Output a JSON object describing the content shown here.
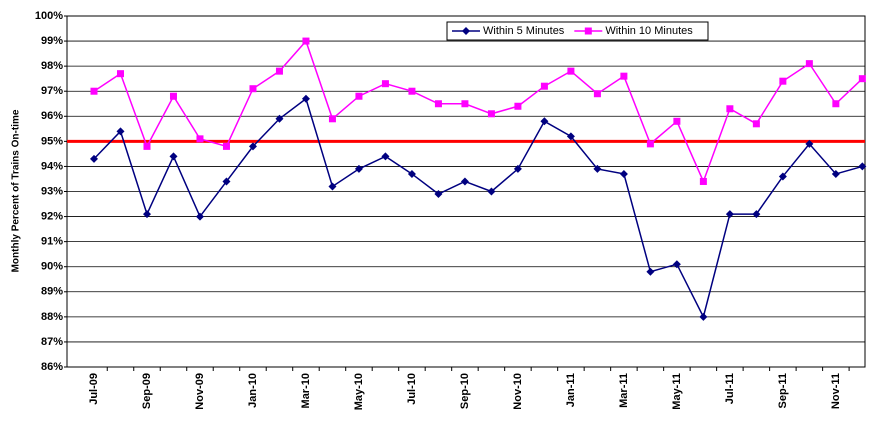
{
  "chart_data": {
    "type": "line",
    "y_label": "Monthly Percent of Trains On-time",
    "categories": [
      "Jul-09",
      null,
      "Sep-09",
      null,
      "Nov-09",
      null,
      "Jan-10",
      null,
      "Mar-10",
      null,
      "May-10",
      null,
      "Jul-10",
      null,
      "Sep-10",
      null,
      "Nov-10",
      null,
      "Jan-11",
      null,
      "Mar-11",
      null,
      "May-11",
      null,
      "Jul-11",
      null,
      "Sep-11",
      null,
      "Nov-11",
      null
    ],
    "series": [
      {
        "name": "Within 5 Minutes",
        "color": "#000080",
        "marker": "diamond",
        "values": [
          94.3,
          95.4,
          92.1,
          94.4,
          92.0,
          93.4,
          94.8,
          95.9,
          96.7,
          93.2,
          93.9,
          94.4,
          93.7,
          92.9,
          93.4,
          93.0,
          93.9,
          95.8,
          95.2,
          93.9,
          93.7,
          89.8,
          90.1,
          88.0,
          92.1,
          92.1,
          93.6,
          94.9,
          93.7,
          94.0
        ]
      },
      {
        "name": "Within 10 Minutes",
        "color": "#ff00ff",
        "marker": "square",
        "values": [
          97.0,
          97.7,
          94.8,
          96.8,
          95.1,
          94.8,
          97.1,
          97.8,
          99.0,
          95.9,
          96.8,
          97.3,
          97.0,
          96.5,
          96.5,
          96.1,
          96.4,
          97.2,
          97.8,
          96.9,
          97.6,
          94.9,
          95.8,
          93.4,
          96.3,
          95.7,
          97.4,
          98.1,
          96.5,
          97.5
        ]
      }
    ],
    "target": {
      "value": 95,
      "color": "#ff0000"
    },
    "ylim": [
      86,
      100
    ],
    "yticks": [
      {
        "value": 86,
        "label": "86%"
      },
      {
        "value": 87,
        "label": "87%"
      },
      {
        "value": 88,
        "label": "88%"
      },
      {
        "value": 89,
        "label": "89%"
      },
      {
        "value": 90,
        "label": "90%"
      },
      {
        "value": 91,
        "label": "91%"
      },
      {
        "value": 92,
        "label": "92%"
      },
      {
        "value": 93,
        "label": "93%"
      },
      {
        "value": 94,
        "label": "94%"
      },
      {
        "value": 95,
        "label": "95%"
      },
      {
        "value": 96,
        "label": "96%"
      },
      {
        "value": 97,
        "label": "97%"
      },
      {
        "value": 98,
        "label": "98%"
      },
      {
        "value": 99,
        "label": "99%"
      },
      {
        "value": 100,
        "label": "100%"
      }
    ],
    "grid": true,
    "legend": "top"
  }
}
